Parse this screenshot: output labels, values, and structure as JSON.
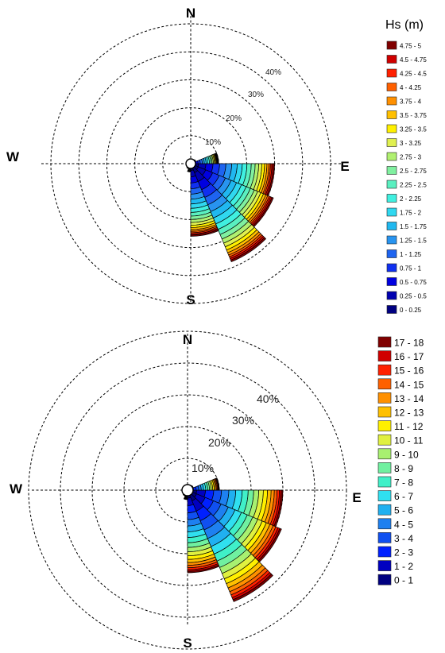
{
  "chart_data": [
    {
      "type": "wind-rose",
      "cardinals": [
        "N",
        "E",
        "S",
        "W"
      ],
      "ring_labels": [
        "10%",
        "20%",
        "30%",
        "40%"
      ],
      "rmax_percent": 50,
      "legend_title": "Hs (m)",
      "bins": [
        "0 - 0.25",
        "0.25 - 0.5",
        "0.5 - 0.75",
        "0.75 - 1",
        "1 - 1.25",
        "1.25 - 1.5",
        "1.5 - 1.75",
        "1.75 - 2",
        "2 - 2.25",
        "2.25 - 2.5",
        "2.5 - 2.75",
        "2.75 - 3",
        "3 - 3.25",
        "3.25 - 3.5",
        "3.5 - 3.75",
        "3.75 - 4",
        "4 - 4.25",
        "4.25 - 4.5",
        "4.5 - 4.75",
        "4.75 - 5"
      ],
      "colors": [
        "#000080",
        "#0000b0",
        "#0000e0",
        "#1030f0",
        "#1e64f0",
        "#2894f0",
        "#20b8f0",
        "#30d8f0",
        "#40f0e0",
        "#5af0c0",
        "#80f0a0",
        "#b0f070",
        "#e0f050",
        "#fff000",
        "#ffc000",
        "#ff9000",
        "#ff6000",
        "#ff2000",
        "#d00000",
        "#800000"
      ],
      "sectors": [
        {
          "direction": 101.25,
          "total": 30.0
        },
        {
          "direction": 123.75,
          "total": 32.0
        },
        {
          "direction": 146.25,
          "total": 38.0
        },
        {
          "direction": 168.75,
          "total": 26.0
        },
        {
          "direction": 78.75,
          "total": 10.0
        },
        {
          "direction": 191.25,
          "total": 3.0
        },
        {
          "direction": 213.75,
          "total": 2.0
        },
        {
          "direction": 56.25,
          "total": 2.0
        },
        {
          "direction": 236.25,
          "total": 1.0
        },
        {
          "direction": 33.75,
          "total": 1.0
        },
        {
          "direction": 258.75,
          "total": 1.0
        },
        {
          "direction": 281.25,
          "total": 1.0
        },
        {
          "direction": 303.75,
          "total": 1.0
        },
        {
          "direction": 326.25,
          "total": 1.0
        },
        {
          "direction": 348.75,
          "total": 1.0
        },
        {
          "direction": 11.25,
          "total": 1.0
        }
      ]
    },
    {
      "type": "wind-rose",
      "cardinals": [
        "N",
        "E",
        "S",
        "W"
      ],
      "ring_labels": [
        "10%",
        "20%",
        "30%",
        "40%"
      ],
      "rmax_percent": 50,
      "legend_title": "",
      "bins": [
        "0 - 1",
        "1 - 2",
        "2 - 3",
        "3 - 4",
        "4 - 5",
        "5 - 6",
        "6 - 7",
        "7 - 8",
        "8 - 9",
        "9 - 10",
        "10 - 11",
        "11 - 12",
        "12 - 13",
        "13 - 14",
        "14 - 15",
        "15 - 16",
        "16 - 17",
        "17 - 18"
      ],
      "colors": [
        "#000080",
        "#0000c0",
        "#0020ff",
        "#1050f0",
        "#1e80f0",
        "#20b0f0",
        "#30e0f0",
        "#40f0c8",
        "#70f0a0",
        "#a8f070",
        "#e0f040",
        "#fff000",
        "#ffc000",
        "#ff9000",
        "#ff6000",
        "#ff2000",
        "#d00000",
        "#800000"
      ],
      "sectors": [
        {
          "direction": 101.25,
          "total": 30.0
        },
        {
          "direction": 123.75,
          "total": 32.0
        },
        {
          "direction": 146.25,
          "total": 38.0
        },
        {
          "direction": 168.75,
          "total": 26.0
        },
        {
          "direction": 78.75,
          "total": 10.0
        },
        {
          "direction": 191.25,
          "total": 3.0
        },
        {
          "direction": 213.75,
          "total": 2.0
        },
        {
          "direction": 56.25,
          "total": 2.0
        },
        {
          "direction": 236.25,
          "total": 1.0
        },
        {
          "direction": 33.75,
          "total": 1.0
        },
        {
          "direction": 258.75,
          "total": 1.0
        },
        {
          "direction": 281.25,
          "total": 1.0
        },
        {
          "direction": 303.75,
          "total": 1.0
        },
        {
          "direction": 326.25,
          "total": 1.0
        },
        {
          "direction": 348.75,
          "total": 1.0
        },
        {
          "direction": 11.25,
          "total": 1.0
        }
      ]
    }
  ]
}
